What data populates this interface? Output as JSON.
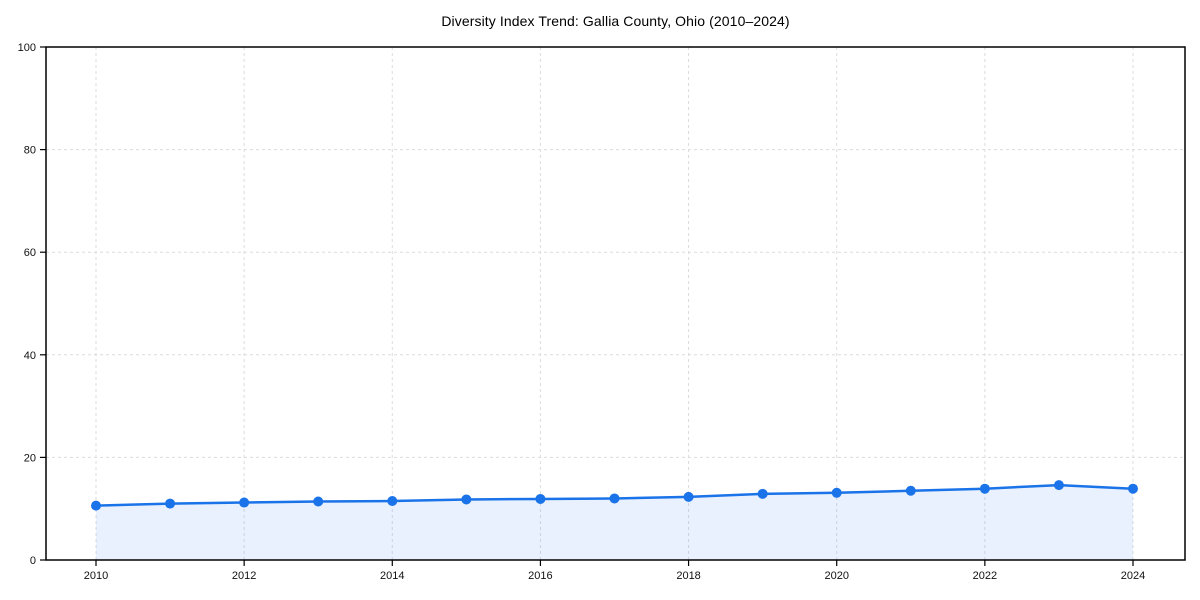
{
  "chart_data": {
    "type": "area",
    "title": "Diversity Index Trend: Gallia County, Ohio (2010–2024)",
    "x": [
      2010,
      2011,
      2012,
      2013,
      2014,
      2015,
      2016,
      2017,
      2018,
      2019,
      2020,
      2021,
      2022,
      2023,
      2024
    ],
    "values": [
      10.6,
      11.0,
      11.2,
      11.4,
      11.5,
      11.8,
      11.9,
      12.0,
      12.3,
      12.9,
      13.1,
      13.5,
      13.9,
      14.6,
      13.9
    ],
    "xlabel": "",
    "ylabel": "",
    "ylim": [
      0,
      100
    ],
    "yticks": [
      0,
      20,
      40,
      60,
      80,
      100
    ],
    "xticks": [
      2010,
      2012,
      2014,
      2016,
      2018,
      2020,
      2022,
      2024
    ],
    "grid": true,
    "grid_style": "dashed",
    "legend_position": "none",
    "marker": "circle",
    "colors": {
      "line": "#1a73e8",
      "marker": "#1a73e8",
      "fill": "rgba(26,115,232,0.10)",
      "grid": "#dcdcdc",
      "axis": "#000000",
      "tick_text": "#111111",
      "background": "#ffffff"
    }
  }
}
